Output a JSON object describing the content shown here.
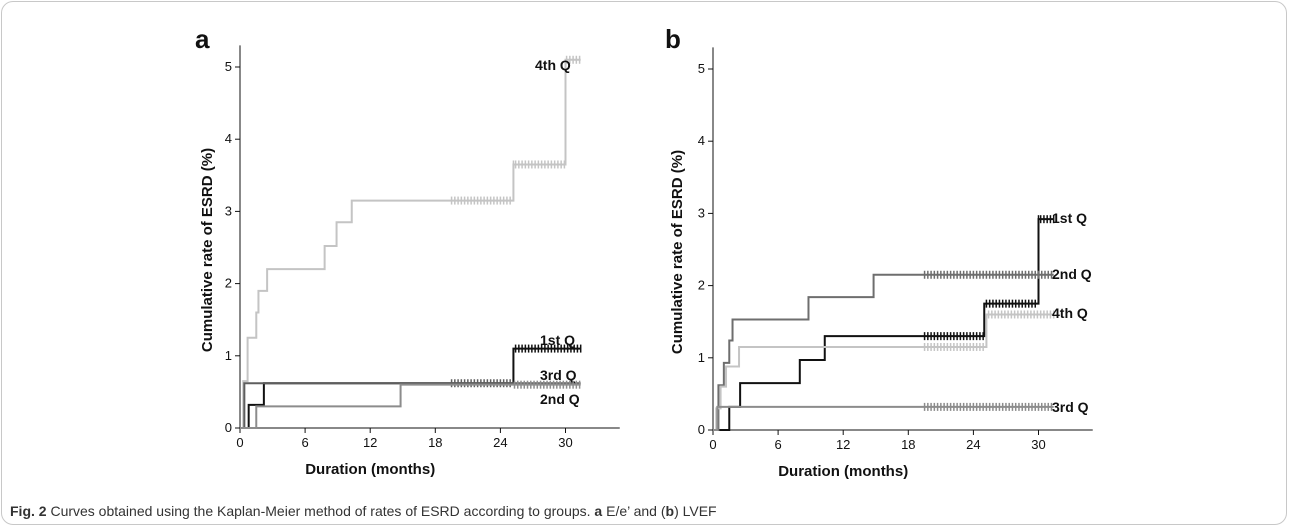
{
  "caption": {
    "fig_label": "Fig. 2",
    "text_1": " Curves obtained using the Kaplan-Meier method of rates of ESRD according to groups. ",
    "letter_a": "a",
    "text_2": " E/e’ and (",
    "letter_b": "b",
    "text_3": ") LVEF"
  },
  "chart_data": [
    {
      "panel": "a",
      "type": "line",
      "xlabel": "Duration (months)",
      "ylabel": "Cumulative rate of ESRD (%)",
      "xlim": [
        0,
        35
      ],
      "ylim": [
        0,
        5.3
      ],
      "xticks": [
        0,
        6,
        12,
        18,
        24,
        30
      ],
      "yticks": [
        0,
        1,
        2,
        3,
        4,
        5
      ],
      "series": [
        {
          "name": "4th Q",
          "color": "#c4c4c4",
          "censor_ranges": [
            [
              19.5,
              25.2
            ],
            [
              25.4,
              30
            ],
            [
              30.1,
              31.4
            ]
          ],
          "points": [
            [
              0,
              0
            ],
            [
              0.3,
              0.65
            ],
            [
              0.7,
              1.25
            ],
            [
              1.5,
              1.6
            ],
            [
              1.7,
              1.9
            ],
            [
              2.5,
              2.2
            ],
            [
              7.8,
              2.52
            ],
            [
              8.9,
              2.85
            ],
            [
              10.3,
              3.15
            ],
            [
              25.2,
              3.65
            ],
            [
              30,
              5.1
            ],
            [
              31.4,
              5.1
            ]
          ]
        },
        {
          "name": "1st Q",
          "color": "#111111",
          "censor_ranges": [
            [
              25.4,
              31.4
            ]
          ],
          "points": [
            [
              0,
              0
            ],
            [
              0.8,
              0.32
            ],
            [
              2.2,
              0.62
            ],
            [
              25.2,
              1.1
            ],
            [
              31.4,
              1.1
            ]
          ]
        },
        {
          "name": "3rd Q",
          "color": "#5e5e5e",
          "censor_ranges": [
            [
              19.5,
              25
            ]
          ],
          "points": [
            [
              0,
              0
            ],
            [
              0.4,
              0.62
            ],
            [
              31.4,
              0.62
            ]
          ]
        },
        {
          "name": "2nd Q",
          "color": "#8c8c8c",
          "censor_ranges": [
            [
              25.3,
              31.4
            ]
          ],
          "points": [
            [
              0,
              0
            ],
            [
              1.5,
              0.3
            ],
            [
              14.8,
              0.6
            ],
            [
              31.4,
              0.6
            ]
          ]
        }
      ]
    },
    {
      "panel": "b",
      "type": "line",
      "xlabel": "Duration (months)",
      "ylabel": "Cumulative rate of ESRD (%)",
      "xlim": [
        0,
        35
      ],
      "ylim": [
        0,
        5.3
      ],
      "xticks": [
        0,
        6,
        12,
        18,
        24,
        30
      ],
      "yticks": [
        0,
        1,
        2,
        3,
        4,
        5
      ],
      "series": [
        {
          "name": "1st Q",
          "color": "#111111",
          "censor_ranges": [
            [
              19.5,
              25
            ],
            [
              25.2,
              30
            ],
            [
              30.2,
              31.4
            ]
          ],
          "points": [
            [
              0,
              0
            ],
            [
              1.5,
              0.32
            ],
            [
              2.5,
              0.65
            ],
            [
              8,
              0.97
            ],
            [
              10.3,
              1.3
            ],
            [
              25,
              1.75
            ],
            [
              30,
              2.92
            ],
            [
              31.4,
              2.92
            ]
          ]
        },
        {
          "name": "2nd Q",
          "color": "#6e6e6e",
          "censor_ranges": [
            [
              19.5,
              31.4
            ]
          ],
          "points": [
            [
              0,
              0
            ],
            [
              0.5,
              0.62
            ],
            [
              1,
              0.93
            ],
            [
              1.5,
              1.24
            ],
            [
              1.8,
              1.53
            ],
            [
              8.8,
              1.84
            ],
            [
              14.8,
              2.15
            ],
            [
              31.4,
              2.15
            ]
          ]
        },
        {
          "name": "4th Q",
          "color": "#c4c4c4",
          "censor_ranges": [
            [
              19.5,
              25
            ],
            [
              25.4,
              31.4
            ]
          ],
          "points": [
            [
              0,
              0
            ],
            [
              0.3,
              0.3
            ],
            [
              0.7,
              0.6
            ],
            [
              1.2,
              0.88
            ],
            [
              2.4,
              1.15
            ],
            [
              25.2,
              1.6
            ],
            [
              31.4,
              1.6
            ]
          ]
        },
        {
          "name": "3rd Q",
          "color": "#8c8c8c",
          "censor_ranges": [
            [
              19.5,
              31.4
            ]
          ],
          "points": [
            [
              0,
              0
            ],
            [
              0.4,
              0.32
            ],
            [
              31.4,
              0.32
            ]
          ]
        }
      ]
    }
  ]
}
